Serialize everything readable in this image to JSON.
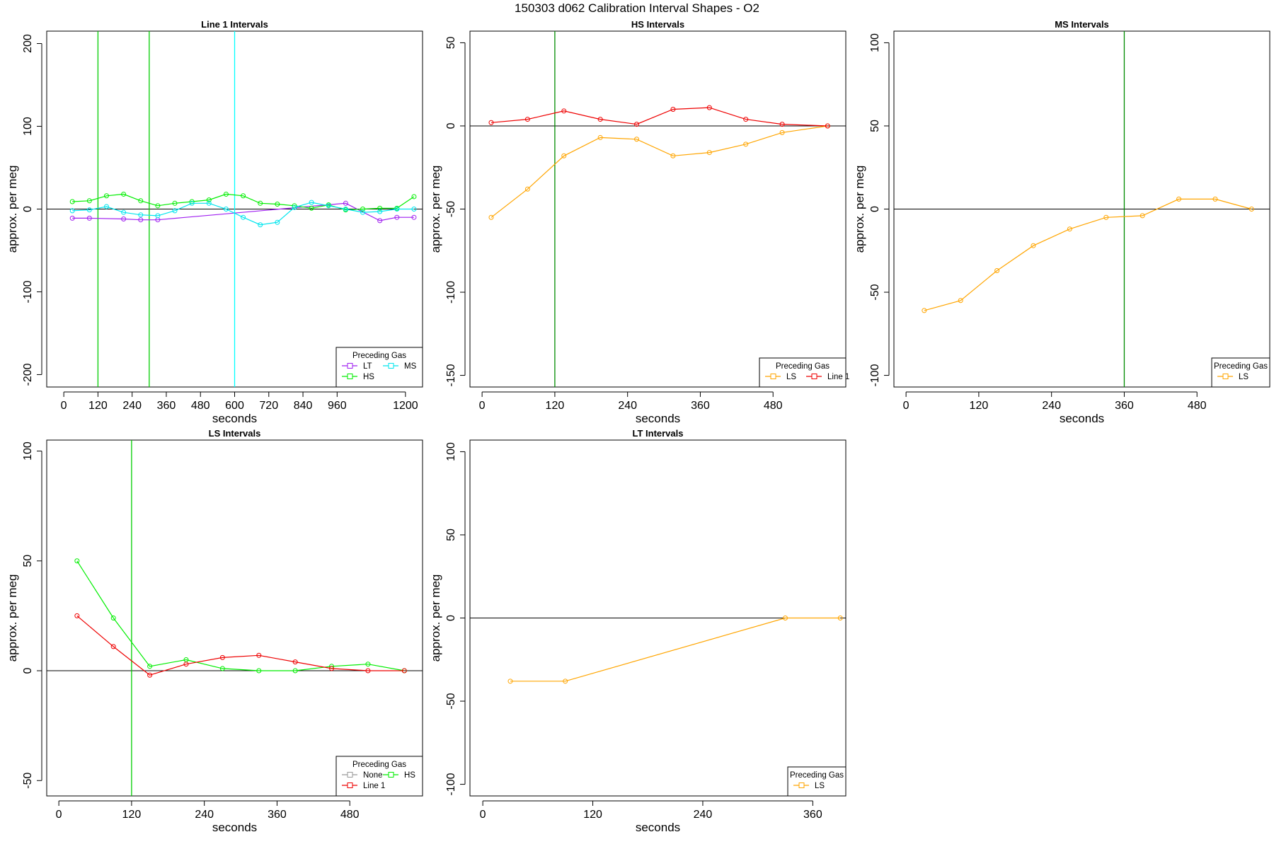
{
  "figure_title": "150303   d062   Calibration Interval Shapes - O2",
  "chart_data": [
    {
      "type": "line",
      "title": "Line 1 Intervals",
      "xlabel": "seconds",
      "ylabel": "approx. per meg",
      "xlim": [
        -60,
        1260
      ],
      "ylim": [
        -215,
        215
      ],
      "xticks": [
        0,
        120,
        240,
        360,
        480,
        600,
        720,
        840,
        960,
        1200
      ],
      "yticks": [
        -200,
        -100,
        0,
        100,
        200
      ],
      "hline": 0,
      "vlines": [
        {
          "x": 120,
          "color": "#00CD00"
        },
        {
          "x": 300,
          "color": "#00CD00"
        },
        {
          "x": 600,
          "color": "#00FFFF"
        }
      ],
      "legend": {
        "title": "Preceding Gas",
        "position": "bottom-right",
        "rows": [
          [
            "LT",
            "MS"
          ],
          [
            "HS"
          ]
        ]
      },
      "series": [
        {
          "name": "LT",
          "color": "#A020F0",
          "x": [
            30,
            90,
            210,
            270,
            330,
            990,
            1110,
            1170,
            1230
          ],
          "y": [
            -11,
            -11,
            -12,
            -13,
            -13,
            7,
            -14,
            -10,
            -10
          ]
        },
        {
          "name": "HS",
          "color": "#00EE00",
          "x": [
            30,
            90,
            150,
            210,
            270,
            330,
            390,
            450,
            510,
            570,
            630,
            690,
            750,
            810,
            870,
            930,
            990,
            1050,
            1110,
            1170,
            1230
          ],
          "y": [
            9,
            10,
            16,
            18,
            10,
            4,
            7,
            9,
            11,
            18,
            16,
            7,
            6,
            4,
            1,
            5,
            -1,
            0,
            1,
            1,
            15
          ]
        },
        {
          "name": "MS",
          "color": "#00E5EE",
          "x": [
            30,
            90,
            150,
            210,
            270,
            330,
            390,
            450,
            510,
            570,
            630,
            690,
            750,
            810,
            870,
            930,
            990,
            1050,
            1110,
            1170,
            1230
          ],
          "y": [
            -2,
            -1,
            3,
            -4,
            -7,
            -8,
            -2,
            7,
            7,
            0,
            -10,
            -19,
            -16,
            2,
            8,
            4,
            0,
            -4,
            -3,
            0,
            0
          ]
        }
      ]
    },
    {
      "type": "line",
      "title": "HS Intervals",
      "xlabel": "seconds",
      "ylabel": "approx. per meg",
      "xlim": [
        -20,
        600
      ],
      "ylim": [
        -157,
        57
      ],
      "xticks": [
        0,
        120,
        240,
        360,
        480
      ],
      "yticks": [
        -150,
        -100,
        -50,
        0,
        50
      ],
      "hline": 0,
      "vlines": [
        {
          "x": 120,
          "color": "#008B00"
        }
      ],
      "legend": {
        "title": "Preceding Gas",
        "position": "bottom-right",
        "rows": [
          [
            "LS",
            "Line 1"
          ]
        ]
      },
      "series": [
        {
          "name": "LS",
          "color": "#FFA500",
          "x": [
            15,
            75,
            135,
            195,
            255,
            315,
            375,
            435,
            495,
            570
          ],
          "y": [
            -55,
            -38,
            -18,
            -7,
            -8,
            -18,
            -16,
            -11,
            -4,
            0
          ]
        },
        {
          "name": "Line 1",
          "color": "#EE0000",
          "x": [
            15,
            75,
            135,
            195,
            255,
            315,
            375,
            435,
            495,
            570
          ],
          "y": [
            2,
            4,
            9,
            4,
            1,
            10,
            11,
            4,
            1,
            0
          ]
        }
      ]
    },
    {
      "type": "line",
      "title": "MS Intervals",
      "xlabel": "seconds",
      "ylabel": "approx. per meg",
      "xlim": [
        -20,
        600
      ],
      "ylim": [
        -107,
        107
      ],
      "xticks": [
        0,
        120,
        240,
        360,
        480
      ],
      "yticks": [
        -100,
        -50,
        0,
        50,
        100
      ],
      "hline": 0,
      "vlines": [
        {
          "x": 360,
          "color": "#008B00"
        }
      ],
      "legend": {
        "title": "Preceding Gas",
        "position": "bottom-right",
        "rows": [
          [
            "LS"
          ]
        ]
      },
      "series": [
        {
          "name": "LS",
          "color": "#FFA500",
          "x": [
            30,
            90,
            150,
            210,
            270,
            330,
            390,
            450,
            510,
            570
          ],
          "y": [
            -61,
            -55,
            -37,
            -22,
            -12,
            -5,
            -4,
            6,
            6,
            0
          ]
        }
      ]
    },
    {
      "type": "line",
      "title": "LS Intervals",
      "xlabel": "seconds",
      "ylabel": "approx. per meg",
      "xlim": [
        -20,
        600
      ],
      "ylim": [
        -57,
        105
      ],
      "xticks": [
        0,
        120,
        240,
        360,
        480
      ],
      "yticks": [
        -50,
        0,
        50,
        100
      ],
      "hline": 0,
      "vlines": [
        {
          "x": 120,
          "color": "#00CD00"
        }
      ],
      "legend": {
        "title": "Preceding Gas",
        "position": "bottom-right",
        "rows": [
          [
            "None",
            "HS"
          ],
          [
            "Line 1"
          ]
        ]
      },
      "series": [
        {
          "name": "None",
          "color": "#999999",
          "x": [],
          "y": []
        },
        {
          "name": "HS",
          "color": "#00EE00",
          "x": [
            30,
            90,
            150,
            210,
            270,
            330,
            390,
            450,
            510,
            570
          ],
          "y": [
            50,
            24,
            2,
            5,
            1,
            0,
            0,
            2,
            3,
            0
          ]
        },
        {
          "name": "Line 1",
          "color": "#EE0000",
          "x": [
            30,
            90,
            150,
            210,
            270,
            330,
            390,
            450,
            510,
            570
          ],
          "y": [
            25,
            11,
            -2,
            3,
            6,
            7,
            4,
            1,
            0,
            0
          ]
        }
      ]
    },
    {
      "type": "line",
      "title": "LT Intervals",
      "xlabel": "seconds",
      "ylabel": "approx. per meg",
      "xlim": [
        -14,
        396
      ],
      "ylim": [
        -107,
        107
      ],
      "xticks": [
        0,
        120,
        240,
        360
      ],
      "yticks": [
        -100,
        -50,
        0,
        50,
        100
      ],
      "hline": 0,
      "vlines": [],
      "legend": {
        "title": "Preceding Gas",
        "position": "bottom-right",
        "rows": [
          [
            "LS"
          ]
        ]
      },
      "series": [
        {
          "name": "LS",
          "color": "#FFA500",
          "x": [
            30,
            90,
            330,
            390
          ],
          "y": [
            -38,
            -38,
            0,
            0
          ]
        }
      ]
    }
  ]
}
